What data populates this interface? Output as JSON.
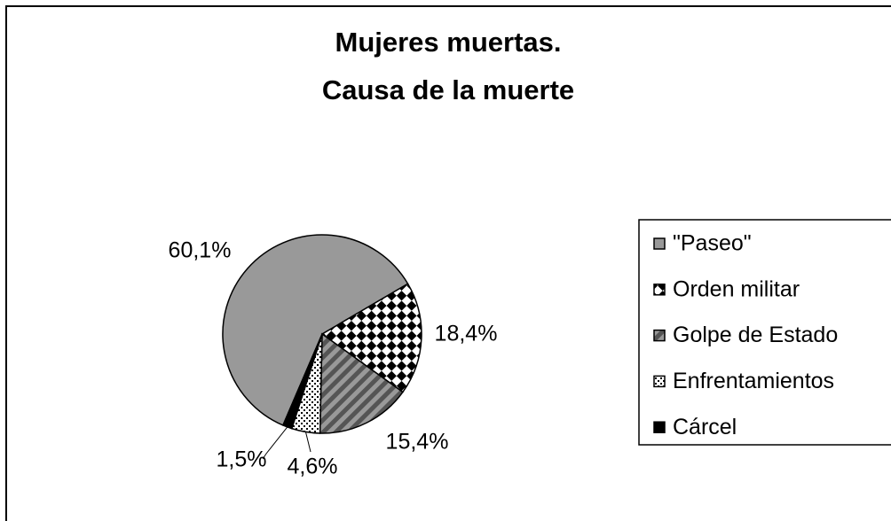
{
  "chart_data": {
    "type": "pie",
    "title": [
      "Mujeres muertas.",
      "Causa de la muerte"
    ],
    "categories": [
      "\"Paseo\"",
      "Orden militar",
      "Golpe de Estado",
      "Enfrentamientos",
      "Cárcel"
    ],
    "values": [
      60.1,
      18.4,
      15.4,
      4.6,
      1.5
    ],
    "value_labels": [
      "60,1%",
      "18,4%",
      "15,4%",
      "4,6%",
      "1,5%"
    ],
    "colors": [
      "#999999",
      "#000000",
      "#555555",
      "#000000",
      "#000000"
    ],
    "patterns": [
      "solid",
      "checker",
      "stripes",
      "dots",
      "solid"
    ],
    "legend": "right"
  }
}
